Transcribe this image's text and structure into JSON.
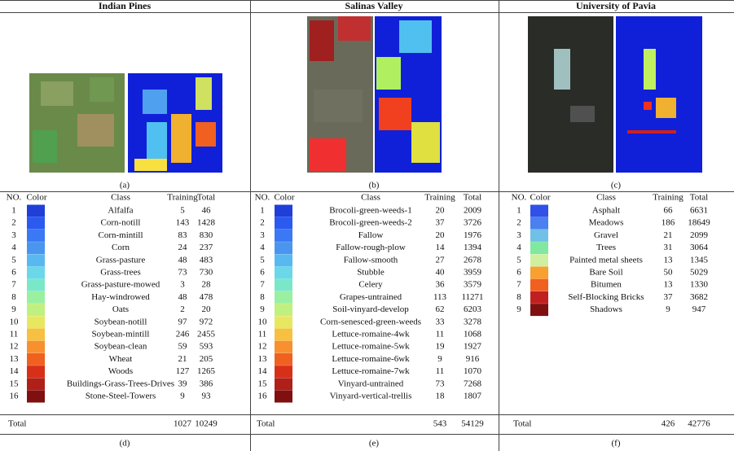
{
  "panels": [
    {
      "title": "Indian Pines",
      "image_caption": "(a)",
      "table_caption": "(d)",
      "headers": [
        "NO.",
        "Color",
        "Class",
        "Training",
        "Total"
      ],
      "rows": [
        [
          1,
          "Alfalfa",
          5,
          46
        ],
        [
          2,
          "Corn-notill",
          143,
          1428
        ],
        [
          3,
          "Corn-mintill",
          83,
          830
        ],
        [
          4,
          "Corn",
          24,
          237
        ],
        [
          5,
          "Grass-pasture",
          48,
          483
        ],
        [
          6,
          "Grass-trees",
          73,
          730
        ],
        [
          7,
          "Grass-pasture-mowed",
          3,
          28
        ],
        [
          8,
          "Hay-windrowed",
          48,
          478
        ],
        [
          9,
          "Oats",
          2,
          20
        ],
        [
          10,
          "Soybean-notill",
          97,
          972
        ],
        [
          11,
          "Soybean-mintill",
          246,
          2455
        ],
        [
          12,
          "Soybean-clean",
          59,
          593
        ],
        [
          13,
          "Wheat",
          21,
          205
        ],
        [
          14,
          "Woods",
          127,
          1265
        ],
        [
          15,
          "Buildings-Grass-Trees-Drives",
          39,
          386
        ],
        [
          16,
          "Stone-Steel-Towers",
          9,
          93
        ]
      ],
      "colors": [
        "#1f3fd8",
        "#2a5af0",
        "#3a78f5",
        "#4a95f0",
        "#5ab8f0",
        "#6ad8e8",
        "#7ae8c8",
        "#9af0a0",
        "#c0f080",
        "#e8e860",
        "#f8c040",
        "#f89030",
        "#f06020",
        "#d83018",
        "#b02018",
        "#801010"
      ],
      "total": [
        "Total",
        1027,
        10249
      ]
    },
    {
      "title": "Salinas Valley",
      "image_caption": "(b)",
      "table_caption": "(e)",
      "headers": [
        "NO.",
        "Color",
        "Class",
        "Training",
        "Total"
      ],
      "rows": [
        [
          1,
          "Brocoli-green-weeds-1",
          20,
          2009
        ],
        [
          2,
          "Brocoli-green-weeds-2",
          37,
          3726
        ],
        [
          3,
          "Fallow",
          20,
          1976
        ],
        [
          4,
          "Fallow-rough-plow",
          14,
          1394
        ],
        [
          5,
          "Fallow-smooth",
          27,
          2678
        ],
        [
          6,
          "Stubble",
          40,
          3959
        ],
        [
          7,
          "Celery",
          36,
          3579
        ],
        [
          8,
          "Grapes-untrained",
          113,
          11271
        ],
        [
          9,
          "Soil-vinyard-develop",
          62,
          6203
        ],
        [
          10,
          "Corn-senesced-green-weeds",
          33,
          3278
        ],
        [
          11,
          "Lettuce-romaine-4wk",
          11,
          1068
        ],
        [
          12,
          "Lettuce-romaine-5wk",
          19,
          1927
        ],
        [
          13,
          "Lettuce-romaine-6wk",
          9,
          916
        ],
        [
          14,
          "Lettuce-romaine-7wk",
          11,
          1070
        ],
        [
          15,
          "Vinyard-untrained",
          73,
          7268
        ],
        [
          16,
          "Vinyard-vertical-trellis",
          18,
          1807
        ]
      ],
      "colors": [
        "#1f3fd8",
        "#2a5af0",
        "#3a78f5",
        "#4a95f0",
        "#5ab8f0",
        "#6ad8e8",
        "#7ae8c8",
        "#9af0a0",
        "#c0f080",
        "#e8e860",
        "#f8c040",
        "#f89030",
        "#f06020",
        "#d83018",
        "#b02018",
        "#801010"
      ],
      "total": [
        "Total",
        543,
        54129
      ]
    },
    {
      "title": "University of Pavia",
      "image_caption": "(c)",
      "table_caption": "(f)",
      "headers": [
        "NO.",
        "Color",
        "Class",
        "Training",
        "Total"
      ],
      "rows": [
        [
          1,
          "Asphalt",
          66,
          6631
        ],
        [
          2,
          "Meadows",
          186,
          18649
        ],
        [
          3,
          "Gravel",
          21,
          2099
        ],
        [
          4,
          "Trees",
          31,
          3064
        ],
        [
          5,
          "Painted metal sheets",
          13,
          1345
        ],
        [
          6,
          "Bare Soil",
          50,
          5029
        ],
        [
          7,
          "Bitumen",
          13,
          1330
        ],
        [
          8,
          "Self-Blocking Bricks",
          37,
          3682
        ],
        [
          9,
          "Shadows",
          9,
          947
        ]
      ],
      "colors": [
        "#3050e8",
        "#4a80f0",
        "#70c0e8",
        "#80e8a0",
        "#d0f0a0",
        "#f8a030",
        "#f06020",
        "#c02020",
        "#801010"
      ],
      "total": [
        "Total",
        426,
        42776
      ]
    }
  ]
}
